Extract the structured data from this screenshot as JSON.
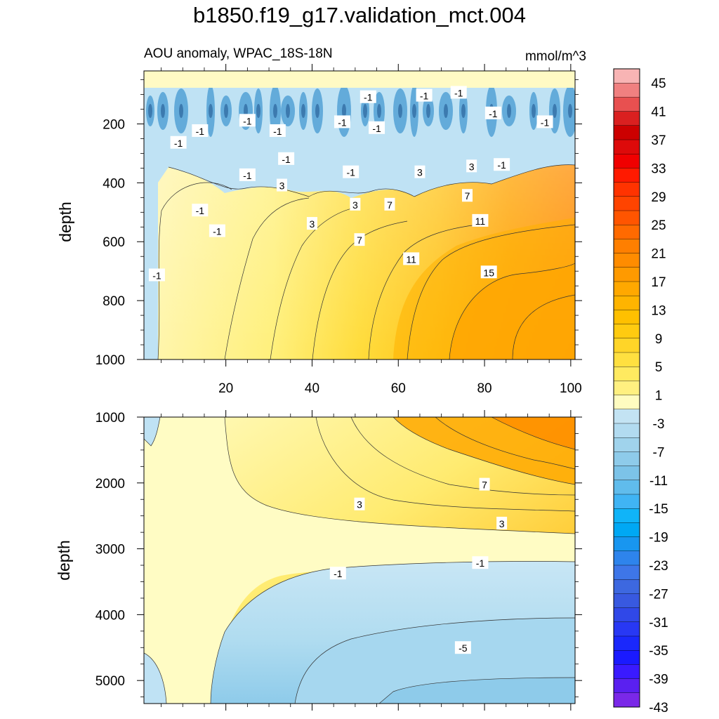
{
  "chart_data": {
    "type": "heatmap",
    "title": "b1850.f19_g17.validation_mct.004",
    "subtitle_left": "AOU anomaly, WPAC_18S-18N",
    "subtitle_right": "mmol/m^3",
    "panels": [
      {
        "name": "upper",
        "ylabel": "depth",
        "xlim": [
          1,
          101
        ],
        "ylim": [
          1000,
          20
        ],
        "x_ticks": [
          20,
          40,
          60,
          80,
          100
        ],
        "y_ticks": [
          200,
          400,
          600,
          800,
          1000
        ],
        "contour_labels": [
          {
            "text": "-1",
            "x": 53,
            "y": 110
          },
          {
            "text": "-1",
            "x": 66,
            "y": 105
          },
          {
            "text": "-1",
            "x": 74,
            "y": 95
          },
          {
            "text": "-1",
            "x": 82,
            "y": 165
          },
          {
            "text": "-1",
            "x": 94,
            "y": 195
          },
          {
            "text": "-1",
            "x": 25,
            "y": 190
          },
          {
            "text": "-1",
            "x": 14,
            "y": 225
          },
          {
            "text": "-1",
            "x": 9,
            "y": 265
          },
          {
            "text": "-1",
            "x": 32,
            "y": 225
          },
          {
            "text": "-1",
            "x": 47,
            "y": 195
          },
          {
            "text": "-1",
            "x": 55,
            "y": 215
          },
          {
            "text": "-1",
            "x": 34,
            "y": 320
          },
          {
            "text": "-1",
            "x": 49,
            "y": 365
          },
          {
            "text": "-1",
            "x": 25,
            "y": 375
          },
          {
            "text": "-1",
            "x": 84,
            "y": 340
          },
          {
            "text": "-1",
            "x": 14,
            "y": 495
          },
          {
            "text": "-1",
            "x": 18,
            "y": 565
          },
          {
            "text": "-1",
            "x": 4,
            "y": 715
          },
          {
            "text": "3",
            "x": 33,
            "y": 410
          },
          {
            "text": "3",
            "x": 40,
            "y": 540
          },
          {
            "text": "3",
            "x": 50,
            "y": 475
          },
          {
            "text": "3",
            "x": 65,
            "y": 365
          },
          {
            "text": "3",
            "x": 77,
            "y": 345
          },
          {
            "text": "7",
            "x": 58,
            "y": 475
          },
          {
            "text": "7",
            "x": 76,
            "y": 445
          },
          {
            "text": "7",
            "x": 51,
            "y": 595
          },
          {
            "text": "11",
            "x": 79,
            "y": 530
          },
          {
            "text": "11",
            "x": 63,
            "y": 660
          },
          {
            "text": "15",
            "x": 81,
            "y": 705
          }
        ]
      },
      {
        "name": "lower",
        "ylabel": "depth",
        "xlim": [
          1,
          101
        ],
        "ylim": [
          5350,
          1000
        ],
        "y_ticks": [
          1000,
          2000,
          3000,
          4000,
          5000
        ],
        "contour_labels": [
          {
            "text": "3",
            "x": 51,
            "y": 2330
          },
          {
            "text": "7",
            "x": 80,
            "y": 2030
          },
          {
            "text": "3",
            "x": 84,
            "y": 2620
          },
          {
            "text": "-1",
            "x": 46,
            "y": 3380
          },
          {
            "text": "-1",
            "x": 79,
            "y": 3220
          },
          {
            "text": "-5",
            "x": 75,
            "y": 4510
          }
        ]
      }
    ],
    "colorbar": {
      "labels": [
        "45",
        "41",
        "37",
        "33",
        "29",
        "25",
        "21",
        "17",
        "13",
        "9",
        "5",
        "1",
        "-3",
        "-7",
        "-11",
        "-15",
        "-19",
        "-23",
        "-27",
        "-31",
        "-35",
        "-39",
        "-43"
      ],
      "colors": [
        "#F8B4B4",
        "#F08080",
        "#E85050",
        "#DA2020",
        "#CC0000",
        "#DD0A0A",
        "#F00000",
        "#FF1A00",
        "#FF3300",
        "#FF4400",
        "#FF5500",
        "#FF6A00",
        "#FF7F00",
        "#FF8C00",
        "#FF9A00",
        "#FFA800",
        "#FFB400",
        "#FFC000",
        "#FFCB10",
        "#FFD528",
        "#FFE040",
        "#FFEA60",
        "#FFF080",
        "#FFFCC0",
        "#C3E3F3",
        "#B2DBF0",
        "#A0D3EC",
        "#8ECBEA",
        "#7CC3E8",
        "#60BCEC",
        "#40B4F4",
        "#10B4F8",
        "#00A8F4",
        "#1896F0",
        "#2E84EC",
        "#3E76E8",
        "#3D68E0",
        "#3859E0",
        "#3048E8",
        "#2838F4",
        "#1A28FC",
        "#1A1AFF",
        "#3A1AFF",
        "#5A20F0",
        "#7A28E8"
      ]
    }
  }
}
